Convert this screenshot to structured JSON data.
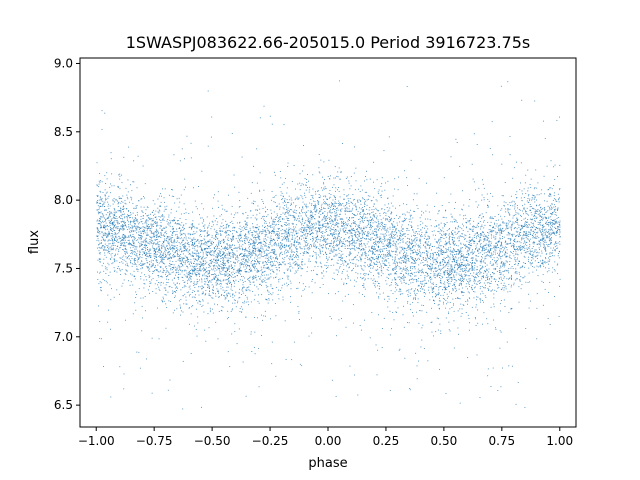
{
  "chart_data": {
    "type": "scatter",
    "title": "1SWASPJ083622.66-205015.0 Period 3916723.75s",
    "xlabel": "phase",
    "ylabel": "flux",
    "xlim": [
      -1.07,
      1.07
    ],
    "ylim": [
      6.34,
      9.04
    ],
    "xticks": [
      -1.0,
      -0.75,
      -0.5,
      -0.25,
      0.0,
      0.25,
      0.5,
      0.75,
      1.0
    ],
    "xtick_labels": [
      "−1.00",
      "−0.75",
      "−0.50",
      "−0.25",
      "0.00",
      "0.25",
      "0.50",
      "0.75",
      "1.00"
    ],
    "yticks": [
      6.5,
      7.0,
      7.5,
      8.0,
      8.5,
      9.0
    ],
    "ytick_labels": [
      "6.5",
      "7.0",
      "7.5",
      "8.0",
      "8.5",
      "9.0"
    ],
    "grid": false,
    "marker_color": "#1f77b4",
    "profile": {
      "phase": [
        0.0,
        0.1,
        0.2,
        0.3,
        0.4,
        0.5,
        0.6,
        0.7,
        0.8,
        0.9,
        1.0
      ],
      "median_flux": [
        7.82,
        7.77,
        7.7,
        7.62,
        7.57,
        7.55,
        7.57,
        7.62,
        7.7,
        7.78,
        7.82
      ]
    },
    "point_count": 9000
  }
}
